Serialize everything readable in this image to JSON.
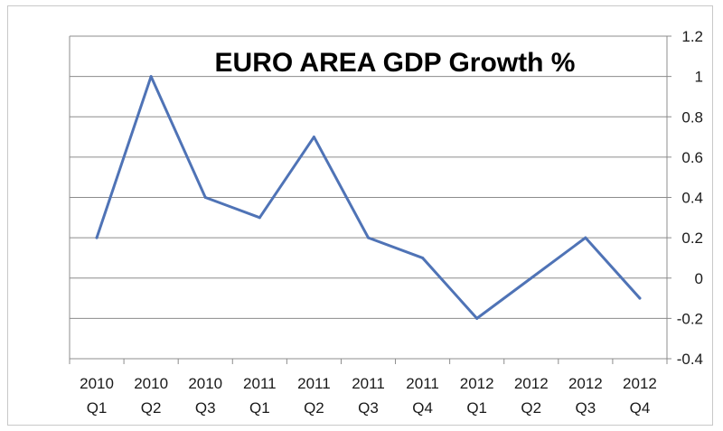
{
  "chart_data": {
    "type": "line",
    "title": "EURO AREA GDP Growth %",
    "xlabel": "",
    "ylabel": "",
    "categories": [
      [
        "2010",
        "Q1"
      ],
      [
        "2010",
        "Q2"
      ],
      [
        "2010",
        "Q3"
      ],
      [
        "2011",
        "Q1"
      ],
      [
        "2011",
        "Q2"
      ],
      [
        "2011",
        "Q3"
      ],
      [
        "2011",
        "Q4"
      ],
      [
        "2012",
        "Q1"
      ],
      [
        "2012",
        "Q2"
      ],
      [
        "2012",
        "Q3"
      ],
      [
        "2012",
        "Q4"
      ]
    ],
    "series": [
      {
        "values": [
          0.2,
          1.0,
          0.4,
          0.3,
          0.7,
          0.2,
          0.1,
          -0.2,
          0.0,
          0.2,
          -0.1
        ]
      }
    ],
    "y_ticks": [
      "1.2",
      "1",
      "0.8",
      "0.6",
      "0.4",
      "0.2",
      "0",
      "-0.2",
      "-0.4"
    ],
    "ylim": [
      -0.4,
      1.2
    ],
    "y_axis_side": "right",
    "grid": true,
    "legend": "none",
    "colors": {
      "line": "#4f73b6",
      "grid": "#8c8c8c",
      "axis": "#8c8c8c"
    }
  }
}
